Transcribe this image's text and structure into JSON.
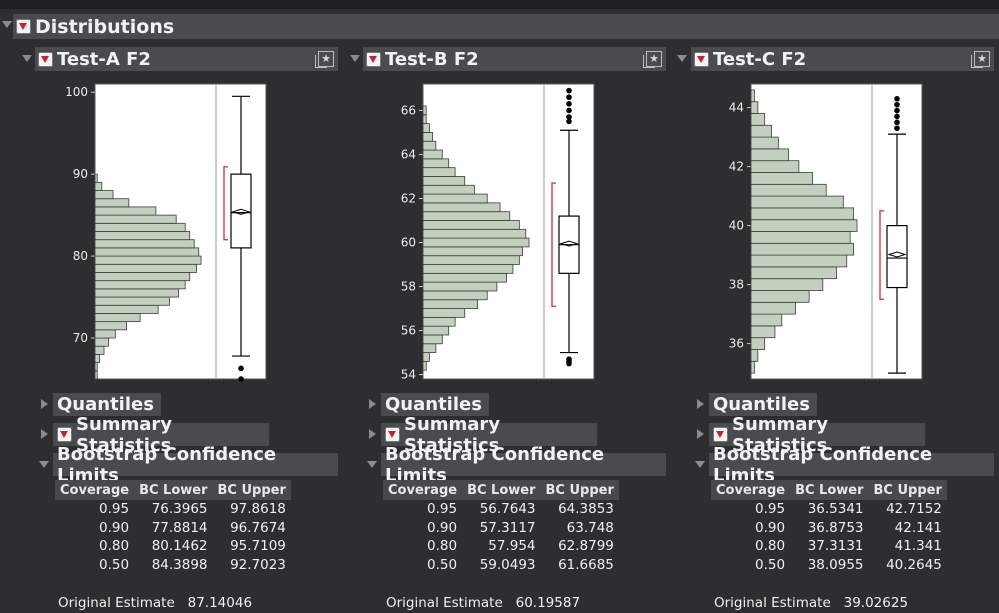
{
  "report_title": "Distributions",
  "panels": [
    {
      "title": "Test-A F2",
      "axis": {
        "min": 65,
        "max": 101,
        "ticks": [
          70,
          80,
          90,
          100
        ]
      },
      "histogram": {
        "start": 65,
        "bin_width": 1,
        "counts": [
          1,
          1,
          2,
          4,
          6,
          9,
          14,
          20,
          28,
          33,
          37,
          40,
          42,
          45,
          47,
          46,
          44,
          42,
          40,
          36,
          27,
          15,
          8,
          3,
          1
        ]
      },
      "boxplot": {
        "min": 67.8,
        "q1": 81.0,
        "median": 85.3,
        "mean": 85.4,
        "q3": 90.0,
        "max": 99.5,
        "outliers": [
          66.3,
          65.0
        ],
        "ci": [
          82.0,
          90.9
        ]
      },
      "sections": {
        "quantiles": "Quantiles",
        "summary": "Summary Statistics",
        "bootstrap": "Bootstrap Confidence Limits"
      },
      "table": {
        "headers": [
          "Coverage",
          "BC Lower",
          "BC Upper"
        ],
        "rows": [
          [
            "0.95",
            "76.3965",
            "97.8618"
          ],
          [
            "0.90",
            "77.8814",
            "96.7674"
          ],
          [
            "0.80",
            "80.1462",
            "95.7109"
          ],
          [
            "0.50",
            "84.3898",
            "92.7023"
          ]
        ]
      },
      "original_label": "Original Estimate",
      "original_value": "87.14046"
    },
    {
      "title": "Test-B F2",
      "axis": {
        "min": 53.8,
        "max": 67.2,
        "ticks": [
          54,
          56,
          58,
          60,
          62,
          64,
          66
        ]
      },
      "histogram": {
        "start": 54.2,
        "bin_width": 0.4,
        "counts": [
          1,
          2,
          4,
          6,
          8,
          10,
          13,
          17,
          20,
          23,
          26,
          28,
          30,
          31,
          33,
          32,
          30,
          27,
          24,
          20,
          16,
          13,
          10,
          8,
          6,
          4,
          3,
          2,
          1,
          1
        ]
      },
      "boxplot": {
        "min": 55.0,
        "q1": 58.6,
        "median": 59.9,
        "mean": 59.95,
        "q3": 61.2,
        "max": 65.1,
        "outliers": [
          54.5,
          54.6,
          54.7,
          65.5,
          65.7,
          66.0,
          66.3,
          66.6,
          66.9
        ],
        "ci": [
          57.1,
          62.7
        ]
      },
      "sections": {
        "quantiles": "Quantiles",
        "summary": "Summary Statistics",
        "bootstrap": "Bootstrap Confidence Limits"
      },
      "table": {
        "headers": [
          "Coverage",
          "BC Lower",
          "BC Upper"
        ],
        "rows": [
          [
            "0.95",
            "56.7643",
            "64.3853"
          ],
          [
            "0.90",
            "57.3117",
            "63.748"
          ],
          [
            "0.80",
            "57.954",
            "62.8799"
          ],
          [
            "0.50",
            "59.0493",
            "61.6685"
          ]
        ]
      },
      "original_label": "Original Estimate",
      "original_value": "60.19587"
    },
    {
      "title": "Test-C F2",
      "axis": {
        "min": 34.8,
        "max": 44.8,
        "ticks": [
          36,
          38,
          40,
          42,
          44
        ]
      },
      "histogram": {
        "start": 35.0,
        "bin_width": 0.4,
        "counts": [
          1,
          2,
          4,
          7,
          9,
          13,
          17,
          21,
          25,
          28,
          30,
          29,
          31,
          30,
          27,
          22,
          18,
          14,
          11,
          8,
          6,
          4,
          2,
          1
        ]
      },
      "boxplot": {
        "min": 35.0,
        "q1": 37.9,
        "median": 38.9,
        "mean": 39.02,
        "q3": 40.0,
        "max": 43.1,
        "outliers": [
          43.3,
          43.5,
          43.7,
          43.9,
          44.1,
          44.3
        ],
        "ci": [
          37.5,
          40.5
        ]
      },
      "sections": {
        "quantiles": "Quantiles",
        "summary": "Summary Statistics",
        "bootstrap": "Bootstrap Confidence Limits"
      },
      "table": {
        "headers": [
          "Coverage",
          "BC Lower",
          "BC Upper"
        ],
        "rows": [
          [
            "0.95",
            "36.5341",
            "42.7152"
          ],
          [
            "0.90",
            "36.8753",
            "42.141"
          ],
          [
            "0.80",
            "37.3131",
            "41.341"
          ],
          [
            "0.50",
            "38.0955",
            "40.2645"
          ]
        ]
      },
      "original_label": "Original Estimate",
      "original_value": "39.02625"
    }
  ],
  "colors": {
    "bar_fill": "#c3d0c0",
    "ci_bracket": "#d23a4a",
    "plot_bg": "#ffffff"
  }
}
